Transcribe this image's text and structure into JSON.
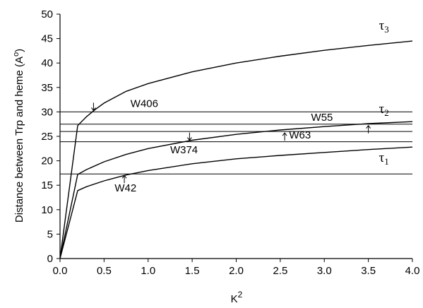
{
  "chart_data": {
    "type": "line",
    "xlabel_base": "K",
    "xlabel_sup": "2",
    "ylabel": "Distance between Trp and heme (A",
    "ylabel_sup": "o",
    "ylabel_close": ")",
    "xlim": [
      0,
      4
    ],
    "ylim": [
      0,
      50
    ],
    "xticks": [
      0.0,
      0.5,
      1.0,
      1.5,
      2.0,
      2.5,
      3.0,
      3.5,
      4.0
    ],
    "xtick_labels": [
      "0.0",
      "0.5",
      "1.0",
      "1.5",
      "2.0",
      "2.5",
      "3.0",
      "3.5",
      "4.0"
    ],
    "yticks": [
      0,
      5,
      10,
      15,
      20,
      25,
      30,
      35,
      40,
      45,
      50
    ],
    "ytick_labels": [
      "0",
      "5",
      "10",
      "15",
      "20",
      "25",
      "30",
      "35",
      "40",
      "45",
      "50"
    ],
    "series": [
      {
        "name": "τ3",
        "symbol": "τ",
        "sub": "3",
        "x": [
          0,
          0.2,
          0.3,
          0.4,
          0.5,
          0.75,
          1.0,
          1.5,
          2.0,
          2.5,
          3.0,
          3.5,
          4.0
        ],
        "y": [
          0,
          27.2,
          29.0,
          30.5,
          31.8,
          34.2,
          35.8,
          38.2,
          40.0,
          41.4,
          42.6,
          43.6,
          44.5
        ]
      },
      {
        "name": "τ2",
        "symbol": "τ",
        "sub": "2",
        "x": [
          0,
          0.2,
          0.3,
          0.5,
          0.75,
          1.0,
          1.5,
          2.0,
          2.5,
          3.0,
          3.5,
          4.0
        ],
        "y": [
          0,
          17.2,
          18.2,
          19.8,
          21.3,
          22.5,
          24.2,
          25.4,
          26.3,
          27.0,
          27.6,
          28.0
        ]
      },
      {
        "name": "τ1",
        "symbol": "τ",
        "sub": "1",
        "x": [
          0,
          0.2,
          0.3,
          0.5,
          0.75,
          1.0,
          1.5,
          2.0,
          2.5,
          3.0,
          3.5,
          4.0
        ],
        "y": [
          0,
          13.9,
          14.7,
          15.9,
          17.1,
          18.0,
          19.4,
          20.4,
          21.1,
          21.7,
          22.3,
          22.8
        ]
      }
    ],
    "reference_lines": [
      {
        "label": "W406",
        "y": 30.0,
        "label_x": 0.8,
        "label_y": 31.0,
        "arrow_x": 0.38,
        "arrow_dir": "down"
      },
      {
        "label": "W55",
        "y": 27.5,
        "label_x": 2.85,
        "label_y": 28.2,
        "arrow_x": 3.5,
        "arrow_dir": "up"
      },
      {
        "label": "W63",
        "y": 26.0,
        "label_x": 2.6,
        "label_y": 24.6,
        "arrow_x": 2.55,
        "arrow_dir": "up"
      },
      {
        "label": "W374",
        "y": 23.9,
        "label_x": 1.25,
        "label_y": 21.5,
        "arrow_x": 1.47,
        "arrow_dir": "down"
      },
      {
        "label": "W42",
        "y": 17.3,
        "label_x": 0.62,
        "label_y": 13.7,
        "arrow_x": 0.73,
        "arrow_dir": "up"
      }
    ],
    "grid": false,
    "legend": "none"
  }
}
